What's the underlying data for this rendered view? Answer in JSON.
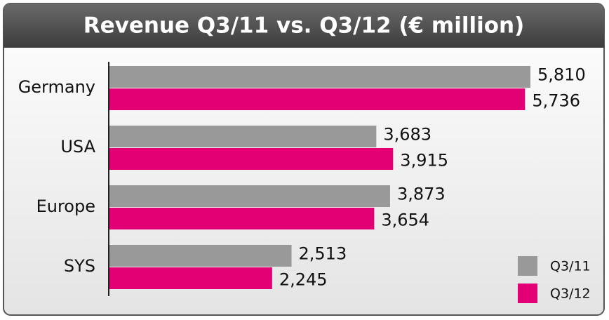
{
  "chart_data": {
    "type": "bar",
    "orientation": "horizontal",
    "title": "Revenue Q3/11 vs. Q3/12 (€ million)",
    "categories": [
      "Germany",
      "USA",
      "Europe",
      "SYS"
    ],
    "series": [
      {
        "name": "Q3/11",
        "color": "#999999",
        "values": [
          5810,
          3683,
          3873,
          2513
        ],
        "value_labels": [
          "5,810",
          "3,683",
          "3,873",
          "2,513"
        ]
      },
      {
        "name": "Q3/12",
        "color": "#e20074",
        "values": [
          5736,
          3915,
          3654,
          2245
        ],
        "value_labels": [
          "5,736",
          "3,915",
          "3,654",
          "2,245"
        ]
      }
    ],
    "legend": "lower right"
  }
}
